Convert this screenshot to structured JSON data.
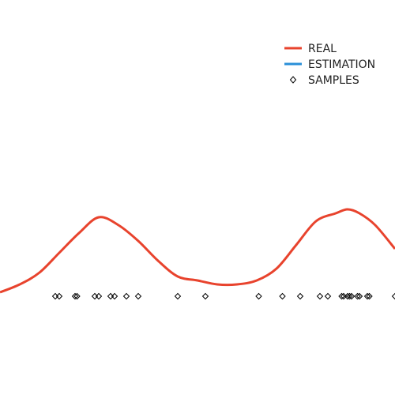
{
  "chart_data": {
    "type": "line",
    "xlim": [
      0,
      1
    ],
    "ylim": [
      0,
      1
    ],
    "grid": false,
    "axes_visible": false,
    "legend_position": "top-right",
    "series": [
      {
        "name": "REAL",
        "kind": "line",
        "color": "#e8432d",
        "x": [
          0.0,
          0.05,
          0.1,
          0.15,
          0.2,
          0.25,
          0.3,
          0.35,
          0.4,
          0.45,
          0.5,
          0.55,
          0.6,
          0.65,
          0.7,
          0.75,
          0.8,
          0.85,
          0.88,
          0.91,
          0.95,
          1.0
        ],
        "y": [
          0.26,
          0.28,
          0.31,
          0.36,
          0.41,
          0.45,
          0.43,
          0.39,
          0.34,
          0.3,
          0.29,
          0.28,
          0.28,
          0.29,
          0.32,
          0.38,
          0.44,
          0.46,
          0.47,
          0.46,
          0.43,
          0.37
        ]
      },
      {
        "name": "ESTIMATION",
        "kind": "line",
        "color": "#2a8fd8",
        "x": [],
        "y": []
      },
      {
        "name": "SAMPLES",
        "kind": "scatter",
        "marker": "diamond",
        "color": "#000000",
        "x": [
          0.14,
          0.15,
          0.19,
          0.195,
          0.24,
          0.25,
          0.28,
          0.29,
          0.32,
          0.35,
          0.45,
          0.52,
          0.655,
          0.715,
          0.76,
          0.81,
          0.83,
          0.865,
          0.87,
          0.88,
          0.885,
          0.89,
          0.905,
          0.91,
          0.93,
          0.935,
          1.0
        ],
        "y": [
          0.25,
          0.25,
          0.25,
          0.25,
          0.25,
          0.25,
          0.25,
          0.25,
          0.25,
          0.25,
          0.25,
          0.25,
          0.25,
          0.25,
          0.25,
          0.25,
          0.25,
          0.25,
          0.25,
          0.25,
          0.25,
          0.25,
          0.25,
          0.25,
          0.25,
          0.25,
          0.25
        ]
      }
    ],
    "legend": [
      {
        "label": "REAL",
        "symbol": "line",
        "color": "#e8432d"
      },
      {
        "label": "ESTIMATION",
        "symbol": "line",
        "color": "#2a8fd8"
      },
      {
        "label": "SAMPLES",
        "symbol": "diamond",
        "color": "#000000"
      }
    ]
  }
}
